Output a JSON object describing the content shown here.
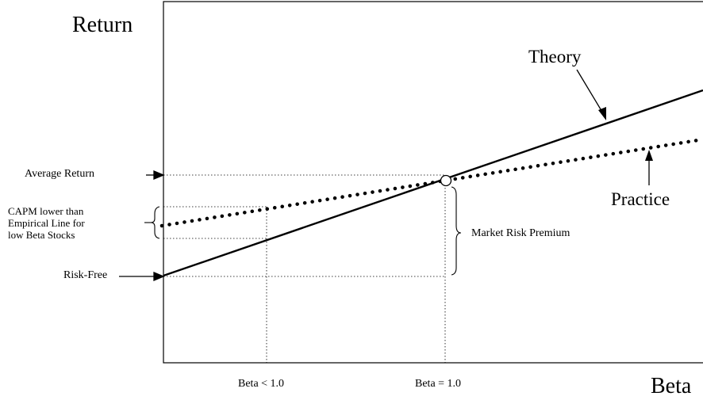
{
  "labels": {
    "y_axis": "Return",
    "x_axis": "Beta",
    "theory": "Theory",
    "practice": "Practice",
    "average_return": "Average Return",
    "risk_free": "Risk-Free",
    "capm_note_line1": "CAPM lower than",
    "capm_note_line2": "Empirical Line for",
    "capm_note_line3": "low Beta Stocks",
    "market_risk_premium": "Market Risk Premium",
    "beta_less": "Beta < 1.0",
    "beta_equal": "Beta = 1.0"
  },
  "colors": {
    "line": "#000000",
    "background": "#ffffff"
  }
}
